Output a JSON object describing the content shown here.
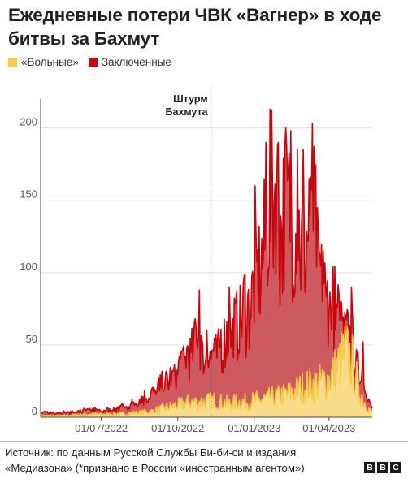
{
  "header": {
    "title": "Ежедневные потери ЧВК «Вагнер» в ходе битвы за Бахмут"
  },
  "legend": [
    {
      "label": "«Вольные»",
      "color": "#f7c948"
    },
    {
      "label": "Заключенные",
      "color": "#c8040e"
    }
  ],
  "footer": {
    "source": "Источник: по данным Русской Службы Би-би-си и издания «Медиазона» (*признано в России «иностранным агентом»)",
    "logo": [
      "B",
      "B",
      "C"
    ]
  },
  "chart_data": {
    "type": "area",
    "stacked": true,
    "x_start": "2022-04-19",
    "x_end": "2023-05-23",
    "ylim": [
      0,
      220
    ],
    "y_ticks": [
      0,
      50,
      100,
      150,
      200
    ],
    "y_tick_labels": [
      "0",
      "50",
      "100",
      "150",
      "200"
    ],
    "x_ticks": [
      {
        "date": "2022-07-01",
        "label": "01/07/2022"
      },
      {
        "date": "2022-10-01",
        "label": "01/10/2022"
      },
      {
        "date": "2023-01-01",
        "label": "01/01/2023"
      },
      {
        "date": "2023-04-01",
        "label": "01/04/2023"
      }
    ],
    "annotation": {
      "date": "2022-11-10",
      "lines": [
        "Штурм",
        "Бахмута"
      ]
    },
    "series": [
      {
        "name": "«Вольные»",
        "color": "#f7c948",
        "points": [
          [
            "2022-04-19",
            1
          ],
          [
            "2022-05-15",
            1
          ],
          [
            "2022-06-15",
            2
          ],
          [
            "2022-07-15",
            2
          ],
          [
            "2022-08-15",
            3
          ],
          [
            "2022-09-01",
            4
          ],
          [
            "2022-09-15",
            6
          ],
          [
            "2022-10-01",
            8
          ],
          [
            "2022-10-15",
            10
          ],
          [
            "2022-11-01",
            10
          ],
          [
            "2022-11-15",
            11
          ],
          [
            "2022-12-01",
            9
          ],
          [
            "2022-12-15",
            10
          ],
          [
            "2023-01-01",
            11
          ],
          [
            "2023-01-15",
            12
          ],
          [
            "2023-02-01",
            14
          ],
          [
            "2023-02-15",
            16
          ],
          [
            "2023-03-01",
            20
          ],
          [
            "2023-03-15",
            22
          ],
          [
            "2023-04-01",
            25
          ],
          [
            "2023-04-10",
            32
          ],
          [
            "2023-04-20",
            42
          ],
          [
            "2023-04-28",
            38
          ],
          [
            "2023-05-05",
            22
          ],
          [
            "2023-05-12",
            12
          ],
          [
            "2023-05-18",
            6
          ],
          [
            "2023-05-23",
            3
          ]
        ]
      },
      {
        "name": "Заключенные",
        "color": "#c8040e",
        "points": [
          [
            "2022-04-19",
            2
          ],
          [
            "2022-05-15",
            2
          ],
          [
            "2022-06-01",
            2
          ],
          [
            "2022-06-15",
            3
          ],
          [
            "2022-07-01",
            2
          ],
          [
            "2022-07-15",
            3
          ],
          [
            "2022-08-01",
            5
          ],
          [
            "2022-08-15",
            8
          ],
          [
            "2022-09-01",
            12
          ],
          [
            "2022-09-15",
            16
          ],
          [
            "2022-10-01",
            22
          ],
          [
            "2022-10-10",
            30
          ],
          [
            "2022-10-20",
            34
          ],
          [
            "2022-10-25",
            55
          ],
          [
            "2022-11-01",
            28
          ],
          [
            "2022-11-10",
            30
          ],
          [
            "2022-11-20",
            38
          ],
          [
            "2022-12-01",
            44
          ],
          [
            "2022-12-10",
            52
          ],
          [
            "2022-12-20",
            62
          ],
          [
            "2023-01-01",
            72
          ],
          [
            "2023-01-10",
            92
          ],
          [
            "2023-01-20",
            120
          ],
          [
            "2023-01-26",
            145
          ],
          [
            "2023-02-01",
            110
          ],
          [
            "2023-02-10",
            125
          ],
          [
            "2023-02-20",
            110
          ],
          [
            "2023-03-01",
            92
          ],
          [
            "2023-03-10",
            100
          ],
          [
            "2023-03-14",
            120
          ],
          [
            "2023-03-20",
            70
          ],
          [
            "2023-04-01",
            55
          ],
          [
            "2023-04-10",
            35
          ],
          [
            "2023-04-20",
            15
          ],
          [
            "2023-05-01",
            12
          ],
          [
            "2023-05-10",
            14
          ],
          [
            "2023-05-18",
            8
          ],
          [
            "2023-05-23",
            4
          ]
        ]
      }
    ],
    "total_peaks": [
      [
        "2022-10-05",
        45
      ],
      [
        "2022-10-22",
        68
      ],
      [
        "2022-10-27",
        88
      ],
      [
        "2022-11-05",
        60
      ],
      [
        "2022-12-02",
        90
      ],
      [
        "2022-12-20",
        98
      ],
      [
        "2023-01-02",
        160
      ],
      [
        "2023-01-15",
        190
      ],
      [
        "2023-01-20",
        213
      ],
      [
        "2023-01-30",
        190
      ],
      [
        "2023-02-08",
        200
      ],
      [
        "2023-02-14",
        198
      ],
      [
        "2023-02-22",
        185
      ],
      [
        "2023-03-01",
        185
      ],
      [
        "2023-03-08",
        165
      ],
      [
        "2023-03-12",
        203
      ],
      [
        "2023-03-18",
        145
      ],
      [
        "2023-03-25",
        115
      ],
      [
        "2023-04-05",
        95
      ],
      [
        "2023-04-15",
        80
      ],
      [
        "2023-04-28",
        90
      ],
      [
        "2023-05-12",
        52
      ]
    ]
  }
}
